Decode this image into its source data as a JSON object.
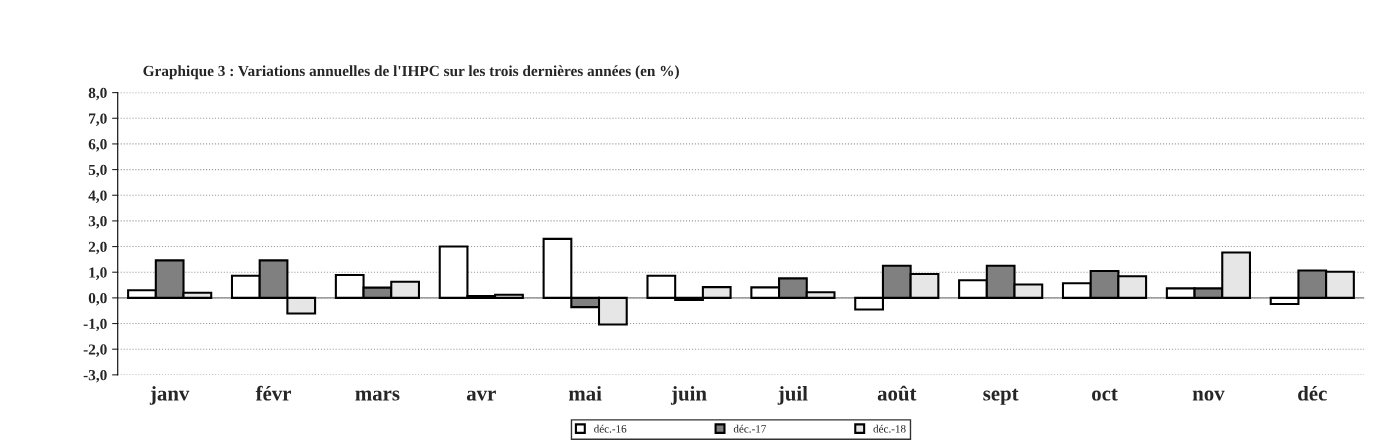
{
  "chart_data": {
    "type": "bar",
    "title": "Graphique 3 : Variations annuelles de l'IHPC sur les trois dernières années (en %)",
    "categories": [
      "janv",
      "févr",
      "mars",
      "avr",
      "mai",
      "juin",
      "juil",
      "août",
      "sept",
      "oct",
      "nov",
      "déc"
    ],
    "series": [
      {
        "name": "déc.-16",
        "color": "#ffffff",
        "values": [
          0.3,
          0.86,
          0.89,
          2.0,
          2.3,
          0.86,
          0.41,
          -0.45,
          0.69,
          0.57,
          0.37,
          -0.24
        ]
      },
      {
        "name": "déc.-17",
        "color": "#808080",
        "values": [
          1.46,
          1.46,
          0.4,
          0.07,
          -0.36,
          -0.08,
          0.76,
          1.25,
          1.25,
          1.05,
          0.37,
          1.07
        ]
      },
      {
        "name": "déc.-18",
        "color": "#e6e6e6",
        "values": [
          0.2,
          -0.61,
          0.63,
          0.12,
          -1.04,
          0.42,
          0.22,
          0.93,
          0.52,
          0.84,
          1.77,
          1.02
        ]
      }
    ],
    "ylim": [
      -3,
      8
    ],
    "yticks": [
      {
        "value": -3,
        "label": "-3,0"
      },
      {
        "value": -2,
        "label": "-2,0"
      },
      {
        "value": -1,
        "label": "-1,0"
      },
      {
        "value": 0,
        "label": "0,0"
      },
      {
        "value": 1,
        "label": "1,0"
      },
      {
        "value": 2,
        "label": "2,0"
      },
      {
        "value": 3,
        "label": "3,0"
      },
      {
        "value": 4,
        "label": "4,0"
      },
      {
        "value": 5,
        "label": "5,0"
      },
      {
        "value": 6,
        "label": "6,0"
      },
      {
        "value": 7,
        "label": "7,0"
      },
      {
        "value": 8,
        "label": "8,0"
      }
    ],
    "grid": "y",
    "legend": "bottom"
  }
}
